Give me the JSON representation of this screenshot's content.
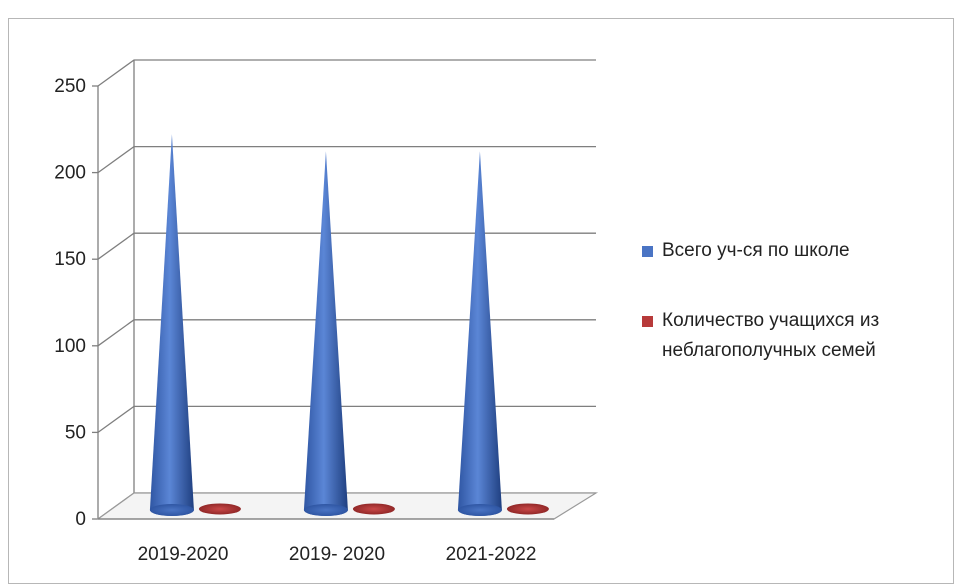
{
  "chart_data": {
    "type": "bar",
    "style": "3d-cone",
    "categories": [
      "2019-2020",
      "2019- 2020",
      "2021-2022"
    ],
    "series": [
      {
        "name": "Всего уч-ся по школе",
        "color": "#4a74c4",
        "values": [
          220,
          210,
          210
        ]
      },
      {
        "name": "Количество учащихся из неблагополучных семей",
        "color": "#b73a3a",
        "values": [
          3,
          3,
          3
        ]
      }
    ],
    "y_ticks": [
      0,
      50,
      100,
      150,
      200,
      250
    ],
    "ylim": [
      0,
      250
    ],
    "grid": true,
    "legend_position": "right"
  }
}
